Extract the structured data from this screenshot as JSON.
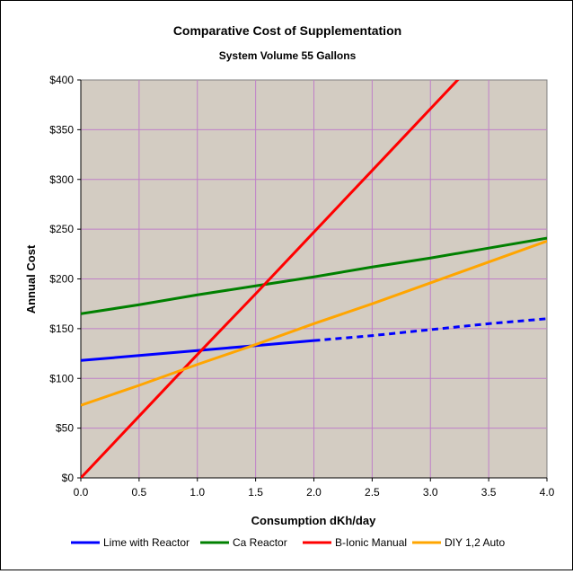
{
  "chart_data": {
    "type": "line",
    "title": "Comparative Cost of Supplementation",
    "subtitle": "System Volume 55 Gallons",
    "xlabel": "Consumption dKh/day",
    "ylabel": "Annual Cost",
    "xlim": [
      0,
      4
    ],
    "ylim": [
      0,
      400
    ],
    "x_ticks": [
      0,
      0.5,
      1,
      1.5,
      2,
      2.5,
      3,
      3.5,
      4
    ],
    "x_tick_labels": [
      "0.0",
      "0.5",
      "1.0",
      "1.5",
      "2.0",
      "2.5",
      "3.0",
      "3.5",
      "4.0"
    ],
    "y_ticks": [
      0,
      50,
      100,
      150,
      200,
      250,
      300,
      350,
      400
    ],
    "y_tick_labels": [
      "$0",
      "$50",
      "$100",
      "$150",
      "$200",
      "$250",
      "$300",
      "$350",
      "$400"
    ],
    "grid": true,
    "legend_position": "bottom",
    "plot_background": "#d3ccc2",
    "grid_color": "#c080c8",
    "series": [
      {
        "name": "Lime with Reactor",
        "color": "#0000ff",
        "x": [
          0,
          0.5,
          1,
          1.5,
          2
        ],
        "y": [
          118,
          123,
          128,
          133,
          138
        ],
        "dashed_extension": {
          "x": [
            2,
            2.5,
            3,
            3.5,
            4
          ],
          "y": [
            138,
            143,
            149,
            155,
            160
          ]
        }
      },
      {
        "name": "Ca Reactor",
        "color": "#008000",
        "x": [
          0,
          0.5,
          1,
          1.5,
          2,
          2.5,
          3,
          3.5,
          4
        ],
        "y": [
          165,
          174,
          184,
          193,
          202,
          212,
          221,
          231,
          241
        ]
      },
      {
        "name": "B-Ionic Manual",
        "color": "#ff0000",
        "x": [
          0,
          0.5,
          1,
          1.5,
          2,
          2.5,
          3,
          3.25
        ],
        "y": [
          0,
          62,
          124,
          185,
          247,
          309,
          371,
          402
        ]
      },
      {
        "name": "DIY 1,2 Auto",
        "color": "#ffa500",
        "x": [
          0,
          0.5,
          1,
          1.5,
          2,
          2.5,
          3,
          3.5,
          4
        ],
        "y": [
          73,
          93,
          114,
          134,
          155,
          175,
          196,
          217,
          238
        ]
      }
    ]
  }
}
